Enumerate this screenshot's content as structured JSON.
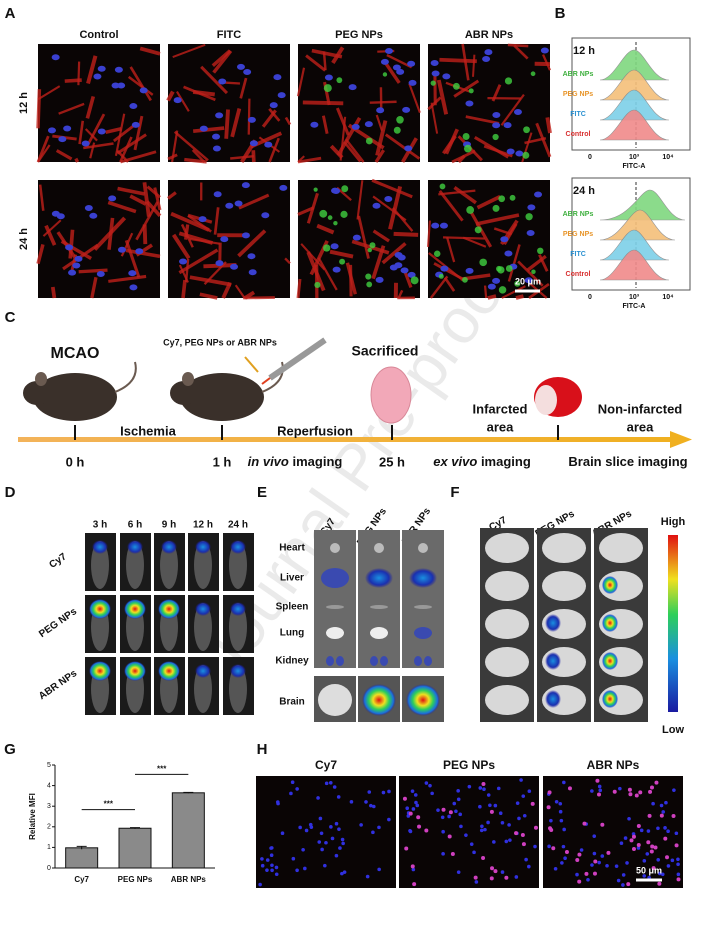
{
  "watermark": "Journal Pre-proof",
  "panel_a": {
    "label": "A",
    "columns": [
      "Control",
      "FITC",
      "PEG NPs",
      "ABR NPs"
    ],
    "rows": [
      "12 h",
      "24 h"
    ],
    "scale_bar": "20 μm"
  },
  "panel_b": {
    "label": "B",
    "plots": [
      {
        "time": "12 h",
        "samples": [
          "ABR NPs",
          "PEG NPs",
          "FITC",
          "Control"
        ],
        "ticks": [
          "0",
          "10³",
          "10⁴"
        ],
        "xlabel": "FITC-A"
      },
      {
        "time": "24 h",
        "samples": [
          "ABR NPs",
          "PEG NPs",
          "FITC",
          "Control"
        ],
        "ticks": [
          "0",
          "10³",
          "10⁴"
        ],
        "xlabel": "FITC-A"
      }
    ]
  },
  "panel_c": {
    "label": "C",
    "model": "MCAO",
    "injection": "Cy7, PEG NPs or ABR NPs",
    "sacrificed": "Sacrificed",
    "infarcted": [
      "Infarcted",
      "area"
    ],
    "non_infarcted": [
      "Non-infarcted",
      "area"
    ],
    "phases": [
      "Ischemia",
      "Reperfusion"
    ],
    "times": [
      "0 h",
      "1 h",
      "25 h"
    ],
    "imaging": [
      {
        "italic": "in vivo",
        "text": "imaging"
      },
      {
        "italic": "ex vivo",
        "text": "imaging"
      },
      {
        "text": "Brain slice imaging"
      }
    ]
  },
  "panel_d": {
    "label": "D",
    "columns": [
      "3 h",
      "6 h",
      "9 h",
      "12 h",
      "24 h"
    ],
    "rows": [
      "Cy7",
      "PEG NPs",
      "ABR NPs"
    ]
  },
  "panel_e": {
    "label": "E",
    "columns": [
      "Cy7",
      "PEG NPs",
      "ABR NPs"
    ],
    "organs": [
      "Heart",
      "Liver",
      "Spleen",
      "Lung",
      "Kidney",
      "Brain"
    ]
  },
  "panel_f": {
    "label": "F",
    "columns": [
      "Cy7",
      "PEG NPs",
      "ABR NPs"
    ],
    "scale": [
      "High",
      "Low"
    ]
  },
  "panel_g": {
    "label": "G"
  },
  "chart_data": {
    "type": "bar",
    "categories": [
      "Cy7",
      "PEG NPs",
      "ABR NPs"
    ],
    "values": [
      0.98,
      1.93,
      3.65
    ],
    "errors": [
      0.07,
      0.03,
      0.02
    ],
    "ylabel": "Relative MFI",
    "ylim": [
      0,
      5
    ],
    "yticks": [
      0,
      1,
      2,
      3,
      4,
      5
    ],
    "color": "#8a8a8a",
    "significance": [
      "***",
      "***"
    ]
  },
  "panel_h": {
    "label": "H",
    "columns": [
      "Cy7",
      "PEG NPs",
      "ABR NPs"
    ],
    "scale_bar": "50 μm"
  }
}
